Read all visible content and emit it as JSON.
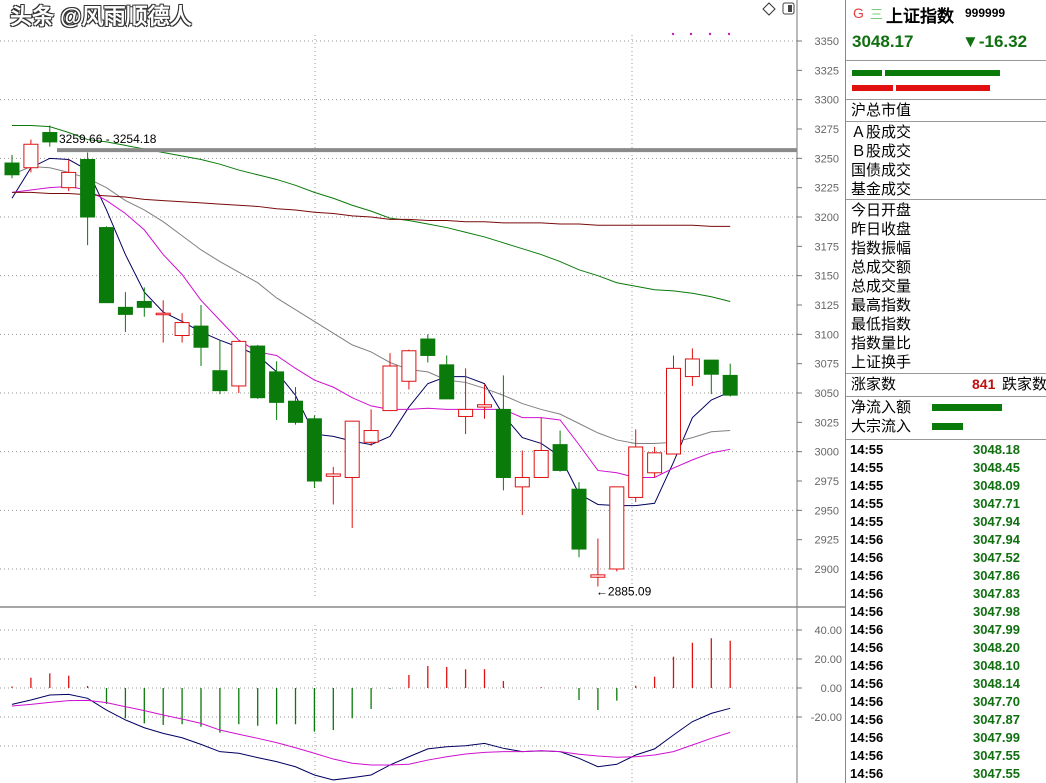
{
  "header": {
    "g_mark": "G",
    "menu_mark": "三",
    "index_name": "上证指数",
    "index_code": "999999",
    "price": "3048.17",
    "change": "▼-16.32"
  },
  "colors": {
    "up": "#e01010",
    "down": "#0a7a0a",
    "ma5": "#000060",
    "ma10": "#d010d0",
    "ma20": "#808080",
    "ma60": "#0a7a0a",
    "ma120": "#7a0a0a",
    "dif": "#000060",
    "dea": "#d010d0",
    "price_text": "#107010"
  },
  "toolbar_icons": [
    "diamond-icon",
    "panel-toggle-icon"
  ],
  "info": {
    "market_cap": "沪总市值",
    "turnover_rows": [
      "Ａ股成交",
      "Ｂ股成交",
      "国债成交",
      "基金成交"
    ],
    "stat_rows": [
      "今日开盘",
      "昨日收盘",
      "指数振幅",
      "总成交额",
      "总成交量",
      "最高指数",
      "最低指数",
      "指数量比",
      "上证换手"
    ],
    "advancers_label": "涨家数",
    "advancers_value": "841",
    "decliners_label": "跌家数",
    "net_inflow_label": "净流入额",
    "block_inflow_label": "大宗流入"
  },
  "ticks": [
    {
      "time": "14:55",
      "price": "3048.18"
    },
    {
      "time": "14:55",
      "price": "3048.45"
    },
    {
      "time": "14:55",
      "price": "3048.09"
    },
    {
      "time": "14:55",
      "price": "3047.71"
    },
    {
      "time": "14:55",
      "price": "3047.94"
    },
    {
      "time": "14:56",
      "price": "3047.94"
    },
    {
      "time": "14:56",
      "price": "3047.52"
    },
    {
      "time": "14:56",
      "price": "3047.86"
    },
    {
      "time": "14:56",
      "price": "3047.83"
    },
    {
      "time": "14:56",
      "price": "3047.98"
    },
    {
      "time": "14:56",
      "price": "3047.99"
    },
    {
      "time": "14:56",
      "price": "3048.20"
    },
    {
      "time": "14:56",
      "price": "3048.10"
    },
    {
      "time": "14:56",
      "price": "3048.14"
    },
    {
      "time": "14:56",
      "price": "3047.70"
    },
    {
      "time": "14:56",
      "price": "3047.87"
    },
    {
      "time": "14:56",
      "price": "3047.99"
    },
    {
      "time": "14:56",
      "price": "3047.55"
    },
    {
      "time": "14:56",
      "price": "3047.55"
    }
  ],
  "watermark": "头条 @风雨顺德人",
  "chart_data": [
    {
      "type": "candlestick",
      "ylim": [
        2860,
        3375
      ],
      "yticks": [
        "3350",
        "3325",
        "3300",
        "3275",
        "3250",
        "3225",
        "3200",
        "3175",
        "3150",
        "3125",
        "3100",
        "3075",
        "3050",
        "3025",
        "3000",
        "2975",
        "2950",
        "2925",
        "2900"
      ],
      "grid": true,
      "annotations": {
        "range_label": "3259.66 - 3254.18",
        "range_line_price": 3257,
        "low_label": "2885.09",
        "low_index": 31
      },
      "ohlc": [
        [
          3246,
          3253,
          3233,
          3236
        ],
        [
          3242,
          3266,
          3238,
          3262
        ],
        [
          3272,
          3278,
          3260,
          3264
        ],
        [
          3225,
          3249,
          3222,
          3238
        ],
        [
          3249,
          3255,
          3176,
          3200
        ],
        [
          3191,
          3192,
          3127,
          3127
        ],
        [
          3123,
          3136,
          3102,
          3117
        ],
        [
          3128,
          3140,
          3115,
          3123
        ],
        [
          3117,
          3129,
          3093,
          3118
        ],
        [
          3099,
          3118,
          3093,
          3110
        ],
        [
          3107,
          3125,
          3073,
          3089
        ],
        [
          3069,
          3095,
          3049,
          3052
        ],
        [
          3056,
          3094,
          3050,
          3094
        ],
        [
          3090,
          3091,
          3045,
          3046
        ],
        [
          3068,
          3077,
          3027,
          3042
        ],
        [
          3043,
          3055,
          3023,
          3025
        ],
        [
          3028,
          3031,
          2969,
          2975
        ],
        [
          2979,
          2987,
          2955,
          2981
        ],
        [
          2978,
          3026,
          2935,
          3026
        ],
        [
          3008,
          3036,
          3005,
          3018
        ],
        [
          3035,
          3084,
          3035,
          3073
        ],
        [
          3060,
          3087,
          3053,
          3086
        ],
        [
          3096,
          3100,
          3076,
          3082
        ],
        [
          3074,
          3082,
          3045,
          3045
        ],
        [
          3030,
          3071,
          3015,
          3036
        ],
        [
          3038,
          3057,
          3028,
          3040
        ],
        [
          3036,
          3065,
          2967,
          2978
        ],
        [
          2970,
          3001,
          2946,
          2978
        ],
        [
          2978,
          3029,
          2978,
          3001
        ],
        [
          3006,
          3018,
          2983,
          2984
        ],
        [
          2968,
          2974,
          2910,
          2917
        ],
        [
          2893,
          2926,
          2885.09,
          2895
        ],
        [
          2900,
          2970,
          2898,
          2970
        ],
        [
          2961,
          3019,
          2957,
          3004
        ],
        [
          2982,
          3004,
          2978,
          2999
        ],
        [
          2998,
          3082,
          2998,
          3071
        ],
        [
          3064,
          3088,
          3056,
          3079
        ],
        [
          3078,
          3078,
          3049,
          3066
        ],
        [
          3065,
          3075,
          3047,
          3048.17
        ]
      ],
      "ma": [
        {
          "key": "ma5",
          "values": [
            3216,
            3242,
            3250,
            3249,
            3240,
            3206,
            3168,
            3136,
            3119,
            3111,
            3102,
            3095,
            3089,
            3082,
            3068,
            3048,
            3015,
            3013,
            3009,
            3006,
            3013,
            3038,
            3058,
            3064,
            3064,
            3058,
            3031,
            3012,
            3007,
            2996,
            2964,
            2955,
            2954,
            2954,
            2956,
            2991,
            3029,
            3044,
            3051
          ]
        },
        {
          "key": "ma10",
          "values": [
            3221,
            3223,
            3225,
            3226,
            3223,
            3214,
            3203,
            3189,
            3168,
            3151,
            3129,
            3112,
            3095,
            3085,
            3082,
            3071,
            3061,
            3055,
            3046,
            3039,
            3036,
            3036,
            3037,
            3036,
            3036,
            3036,
            3036,
            3029,
            3029,
            3027,
            3006,
            2984,
            2982,
            2978,
            2978,
            2986,
            2993,
            2999,
            3002
          ]
        },
        {
          "key": "ma20",
          "values": [
            3236,
            3243,
            3242,
            3238,
            3233,
            3225,
            3214,
            3206,
            3196,
            3184,
            3172,
            3162,
            3153,
            3144,
            3131,
            3121,
            3111,
            3101,
            3091,
            3085,
            3076,
            3070,
            3068,
            3061,
            3059,
            3054,
            3048,
            3041,
            3036,
            3032,
            3024,
            3016,
            3010,
            3007,
            3007,
            3008,
            3012,
            3017,
            3018
          ]
        },
        {
          "key": "ma60",
          "values": [
            3278,
            3278,
            3277,
            3272,
            3266,
            3264,
            3261,
            3258,
            3255,
            3252,
            3249,
            3245,
            3240,
            3236,
            3232,
            3227,
            3221,
            3216,
            3210,
            3205,
            3199,
            3197,
            3194,
            3191,
            3187,
            3183,
            3178,
            3173,
            3168,
            3162,
            3155,
            3150,
            3144,
            3141,
            3138,
            3137,
            3135,
            3132,
            3128
          ]
        },
        {
          "key": "ma120",
          "values": [
            3221,
            3221,
            3220,
            3220,
            3219,
            3218,
            3217,
            3215,
            3214,
            3213,
            3212,
            3211,
            3210,
            3209,
            3207,
            3206,
            3204,
            3203,
            3201,
            3200,
            3198,
            3198,
            3197,
            3197,
            3196,
            3196,
            3195,
            3195,
            3195,
            3194,
            3194,
            3193,
            3193,
            3193,
            3193,
            3193,
            3193,
            3192,
            3192
          ]
        }
      ]
    },
    {
      "type": "bar",
      "ylim": [
        -50,
        50
      ],
      "yticks": [
        "40.00",
        "20.00",
        "0.00",
        "-20.00"
      ],
      "grid": true,
      "histogram": [
        1,
        7.1,
        10.1,
        8.5,
        1.4,
        -11,
        -20.9,
        -24.4,
        -25.5,
        -25,
        -26.7,
        -30.8,
        -25,
        -26,
        -25,
        -25,
        -30.1,
        -29,
        -20.9,
        -14.5,
        -0.5,
        9,
        15.2,
        14.5,
        12.9,
        13,
        4.8,
        0,
        0.5,
        0.2,
        -8.3,
        -15.2,
        -8.7,
        1.6,
        7.8,
        21.6,
        31.2,
        34.3,
        32.6
      ],
      "dif": [
        -11.3,
        -8.3,
        -4.8,
        -4.4,
        -7.1,
        -15.2,
        -22,
        -27.4,
        -31.3,
        -34.3,
        -38.9,
        -43.9,
        -45,
        -48,
        -50.8,
        -54.3,
        -60,
        -63.4,
        -61.8,
        -60,
        -53.1,
        -47.4,
        -42,
        -40.5,
        -39.8,
        -38.2,
        -41.6,
        -43.9,
        -43.4,
        -43.9,
        -48.5,
        -54.3,
        -52.6,
        -46.2,
        -42,
        -32.4,
        -23.2,
        -17.5,
        -14
      ],
      "dea": [
        -12.4,
        -11.3,
        -9.9,
        -8.7,
        -8.5,
        -10.1,
        -12.9,
        -15.6,
        -18.6,
        -21.4,
        -24.4,
        -29,
        -31.9,
        -34.7,
        -37.7,
        -41.2,
        -45,
        -49,
        -51.9,
        -53.1,
        -53.1,
        -52.6,
        -49.7,
        -47.4,
        -45.5,
        -44.4,
        -43.9,
        -43.9,
        -43.2,
        -43.9,
        -45.7,
        -46.9,
        -47.8,
        -47.4,
        -46.2,
        -43.9,
        -39.3,
        -34.7,
        -30.6
      ]
    }
  ]
}
